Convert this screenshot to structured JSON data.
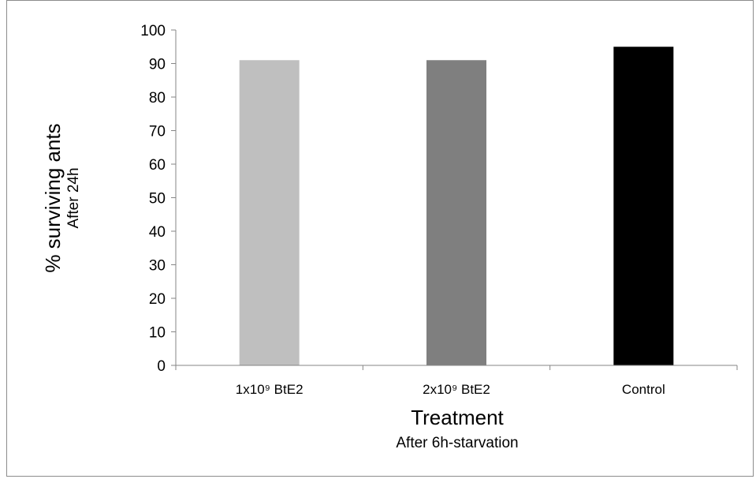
{
  "chart_data": {
    "type": "bar",
    "categories": [
      "1x10⁹ BtE2",
      "2x10⁹ BtE2",
      "Control"
    ],
    "values": [
      91,
      91,
      95
    ],
    "colors": [
      "#bfbfbf",
      "#7f7f7f",
      "#000000"
    ],
    "ylim": [
      0,
      100
    ],
    "yticks": [
      0,
      10,
      20,
      30,
      40,
      50,
      60,
      70,
      80,
      90,
      100
    ],
    "ylabel": "% surviving ants",
    "ylabel_sub": "After 24h",
    "xlabel": "Treatment",
    "xlabel_sub": "After 6h-starvation",
    "grid": false,
    "legend": "none"
  }
}
